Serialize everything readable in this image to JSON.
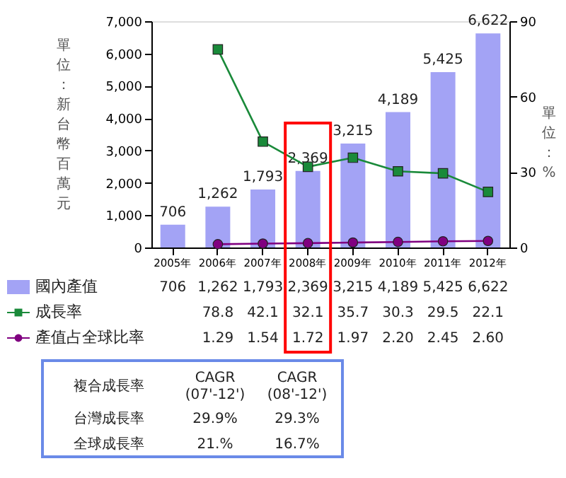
{
  "chart_data": {
    "type": "bar",
    "categories": [
      "2005年",
      "2006年",
      "2007年",
      "2008年",
      "2009年",
      "2010年",
      "2011年",
      "2012年"
    ],
    "ylabel": "單位：新台幣百萬元",
    "y2label": "單位：%",
    "ylim": [
      0,
      7000
    ],
    "yticks": [
      0,
      {
        "value": 1000,
        "label": "1,000"
      },
      {
        "value": 2000,
        "label": "2,000"
      },
      {
        "value": 3000,
        "label": "3,000"
      },
      {
        "value": 4000,
        "label": "4,000"
      },
      {
        "value": 5000,
        "label": "5,000"
      },
      {
        "value": 6000,
        "label": "6,000"
      },
      {
        "value": 7000,
        "label": "7,000"
      }
    ],
    "y2lim": [
      0,
      90
    ],
    "y2ticks": [
      0,
      30,
      60,
      90
    ],
    "series": [
      {
        "name": "國內產值",
        "color": "#a3a3f5",
        "values": [
          706,
          1262,
          1793,
          2369,
          3215,
          4189,
          5425,
          6622
        ],
        "value_labels": [
          "706",
          "1,262",
          "1,793",
          "2,369",
          "3,215",
          "4,189",
          "5,425",
          "6,622"
        ]
      },
      {
        "name": "成長率",
        "type": "line",
        "axis": "y2",
        "color": "#1a8a3a",
        "marker": "square",
        "values": [
          null,
          78.8,
          42.1,
          32.1,
          35.7,
          30.3,
          29.5,
          22.1
        ],
        "value_labels": [
          null,
          "78.8",
          "42.1",
          "32.1",
          "35.7",
          "30.3",
          "29.5",
          "22.1"
        ]
      },
      {
        "name": "產值占全球比率",
        "type": "line",
        "axis": "y2",
        "color": "#800080",
        "marker": "circle",
        "values": [
          null,
          1.29,
          1.54,
          1.72,
          1.97,
          2.2,
          2.45,
          2.6
        ],
        "value_labels": [
          null,
          "1.29",
          "1.54",
          "1.72",
          "1.97",
          "2.20",
          "2.45",
          "2.60"
        ]
      }
    ],
    "legend": "bottom",
    "grid": false,
    "annotations": [
      "複合成長率",
      "CAGR\n(07'-12')",
      "CAGR\n(08'-12')",
      "台灣成長率",
      "29.9%",
      "29.3%",
      "全球成長率",
      "21.%",
      "16.7%"
    ]
  }
}
